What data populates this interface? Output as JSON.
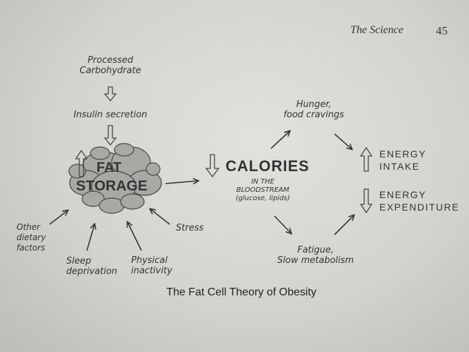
{
  "header": {
    "title": "The Science",
    "page_number": "45"
  },
  "nodes": {
    "processed_carbohydrate": [
      "Processed",
      "Carbohydrate"
    ],
    "insulin_secretion": "Insulin secretion",
    "fat_storage": [
      "FAT",
      "STORAGE"
    ],
    "calories": "CALORIES",
    "calories_sub": [
      "IN THE",
      "BLOODSTREAM",
      "(glucose, lipids)"
    ],
    "hunger": [
      "Hunger,",
      "food cravings"
    ],
    "fatigue": [
      "Fatigue,",
      "Slow metabolism"
    ],
    "energy_intake": [
      "ENERGY",
      "INTAKE"
    ],
    "energy_expenditure": [
      "ENERGY",
      "EXPENDITURE"
    ],
    "other_dietary": [
      "Other",
      "dietary",
      "factors"
    ],
    "sleep_deprivation": [
      "Sleep",
      "deprivation"
    ],
    "physical_inactivity": [
      "Physical",
      "inactivity"
    ],
    "stress": "Stress"
  },
  "caption": "The Fat Cell Theory of Obesity"
}
